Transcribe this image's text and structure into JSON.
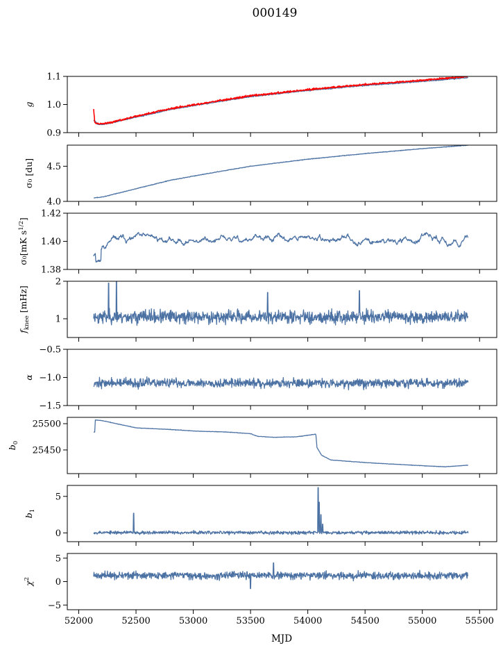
{
  "title": "000149",
  "colors": {
    "series": "#4c72a4",
    "overlay": "#ff0000"
  },
  "chart_data": {
    "type": "line",
    "title": "000149",
    "xlabel": "MJD",
    "xlim": [
      51900,
      55650
    ],
    "x_ticks": [
      52000,
      52500,
      53000,
      53500,
      54000,
      54500,
      55000,
      55500
    ],
    "x_tick_labels": [
      "52000",
      "52500",
      "53000",
      "53500",
      "54000",
      "54500",
      "55000",
      "55500"
    ],
    "data_range": [
      52130,
      55400
    ],
    "panels": [
      {
        "key": "g",
        "ylabel_main": "g",
        "ylabel_sub": "",
        "ylim": [
          0.9,
          1.1
        ],
        "yticks": [
          0.9,
          1.0,
          1.1
        ],
        "ytick_labels": [
          "0.9",
          "1.0",
          "1.1"
        ],
        "series": [
          {
            "type": "trend",
            "color": "#4c72a4",
            "points": [
              [
                52130,
                0.945
              ],
              [
                52170,
                0.93
              ],
              [
                52200,
                0.929
              ],
              [
                52300,
                0.936
              ],
              [
                52500,
                0.955
              ],
              [
                52800,
                0.982
              ],
              [
                53000,
                0.996
              ],
              [
                53500,
                1.028
              ],
              [
                54000,
                1.05
              ],
              [
                54500,
                1.068
              ],
              [
                55000,
                1.082
              ],
              [
                55400,
                1.096
              ]
            ],
            "noise": 0.002
          },
          {
            "type": "trend",
            "color": "#ff0000",
            "points": [
              [
                52130,
                0.985
              ],
              [
                52140,
                0.935
              ],
              [
                52170,
                0.932
              ],
              [
                52200,
                0.931
              ],
              [
                52300,
                0.938
              ],
              [
                52500,
                0.958
              ],
              [
                52800,
                0.985
              ],
              [
                53000,
                0.999
              ],
              [
                53500,
                1.031
              ],
              [
                54000,
                1.053
              ],
              [
                54500,
                1.071
              ],
              [
                55000,
                1.086
              ],
              [
                55400,
                1.1
              ]
            ],
            "noise": 0.003
          }
        ]
      },
      {
        "key": "sigma0_du",
        "ylabel_main": "σ₀ [du]",
        "ylabel_sub": "",
        "ylim": [
          4.0,
          4.8
        ],
        "yticks": [
          4.0,
          4.5
        ],
        "ytick_labels": [
          "4.0",
          "4.5"
        ],
        "series": [
          {
            "type": "trend",
            "color": "#4c72a4",
            "points": [
              [
                52130,
                4.05
              ],
              [
                52200,
                4.06
              ],
              [
                52500,
                4.18
              ],
              [
                52800,
                4.3
              ],
              [
                53000,
                4.36
              ],
              [
                53500,
                4.5
              ],
              [
                54000,
                4.6
              ],
              [
                54500,
                4.68
              ],
              [
                55000,
                4.75
              ],
              [
                55400,
                4.8
              ]
            ],
            "noise": 0.004
          }
        ]
      },
      {
        "key": "sigma0_mK",
        "ylabel_main": "σ₀[mK s",
        "ylabel_sub": "1/2",
        "ylim": [
          1.38,
          1.42
        ],
        "yticks": [
          1.38,
          1.4,
          1.42
        ],
        "ytick_labels": [
          "1.38",
          "1.40",
          "1.42"
        ],
        "series": [
          {
            "type": "walk",
            "color": "#4c72a4",
            "start": 1.39,
            "mean": 1.401,
            "dip": [
              52170,
              1.386
            ],
            "noise": 0.0012,
            "seed": 11
          }
        ]
      },
      {
        "key": "fknee",
        "ylabel_main": "f",
        "ylabel_sub": "knee",
        "ylabel_tail": " [mHz]",
        "ylim": [
          0.5,
          2.0
        ],
        "yticks": [
          1,
          2
        ],
        "ytick_labels": [
          "1",
          "2"
        ],
        "series": [
          {
            "type": "noise",
            "color": "#4c72a4",
            "mean": 1.05,
            "noise": 0.17,
            "spikes": [
              [
                52260,
                1.95
              ],
              [
                52330,
                2.0
              ],
              [
                53650,
                1.7
              ],
              [
                54450,
                1.75
              ]
            ],
            "seed": 23
          }
        ]
      },
      {
        "key": "alpha",
        "ylabel_main": "α",
        "ylabel_sub": "",
        "ylim": [
          -1.5,
          -0.5
        ],
        "yticks": [
          -1.5,
          -1.0,
          -0.5
        ],
        "ytick_labels": [
          "−1.5",
          "−1.0",
          "−0.5"
        ],
        "series": [
          {
            "type": "noise",
            "color": "#4c72a4",
            "mean": -1.1,
            "noise": 0.08,
            "spikes": [],
            "seed": 37
          }
        ]
      },
      {
        "key": "b0",
        "ylabel_main": "b",
        "ylabel_sub": "0",
        "ylim": [
          25405,
          25512
        ],
        "yticks": [
          25450,
          25500
        ],
        "ytick_labels": [
          "25450",
          "25500"
        ],
        "series": [
          {
            "type": "trend",
            "color": "#4c72a4",
            "points": [
              [
                52130,
                25484
              ],
              [
                52140,
                25484
              ],
              [
                52145,
                25507
              ],
              [
                52200,
                25506
              ],
              [
                52500,
                25492
              ],
              [
                52800,
                25489
              ],
              [
                53000,
                25486
              ],
              [
                53300,
                25484
              ],
              [
                53500,
                25481
              ],
              [
                53560,
                25476
              ],
              [
                53700,
                25474
              ],
              [
                53900,
                25475
              ],
              [
                54070,
                25480
              ],
              [
                54080,
                25455
              ],
              [
                54120,
                25440
              ],
              [
                54200,
                25431
              ],
              [
                54500,
                25426
              ],
              [
                55000,
                25420
              ],
              [
                55200,
                25418
              ],
              [
                55400,
                25421
              ]
            ],
            "noise": 0.4
          }
        ]
      },
      {
        "key": "b1",
        "ylabel_main": "b",
        "ylabel_sub": "1",
        "ylim": [
          -1.2,
          6.5
        ],
        "yticks": [
          0,
          5
        ],
        "ytick_labels": [
          "0",
          "5"
        ],
        "series": [
          {
            "type": "noise",
            "color": "#4c72a4",
            "mean": 0.05,
            "noise": 0.22,
            "spikes": [
              [
                52480,
                2.7
              ],
              [
                54090,
                6.2
              ],
              [
                54100,
                4.2
              ],
              [
                54115,
                2.5
              ],
              [
                54130,
                1.2
              ]
            ],
            "seed": 53
          }
        ]
      },
      {
        "key": "chi2",
        "ylabel_main": "χ",
        "ylabel_sub": "",
        "ylabel_sup": "2",
        "ylim": [
          -6,
          6
        ],
        "yticks": [
          -5,
          0,
          5
        ],
        "ytick_labels": [
          "−5",
          "0",
          "5"
        ],
        "series": [
          {
            "type": "noise",
            "color": "#4c72a4",
            "mean": 1.3,
            "noise": 0.75,
            "spikes": [
              [
                53700,
                4.0
              ],
              [
                53500,
                -1.5
              ]
            ],
            "seed": 71
          }
        ]
      }
    ]
  }
}
